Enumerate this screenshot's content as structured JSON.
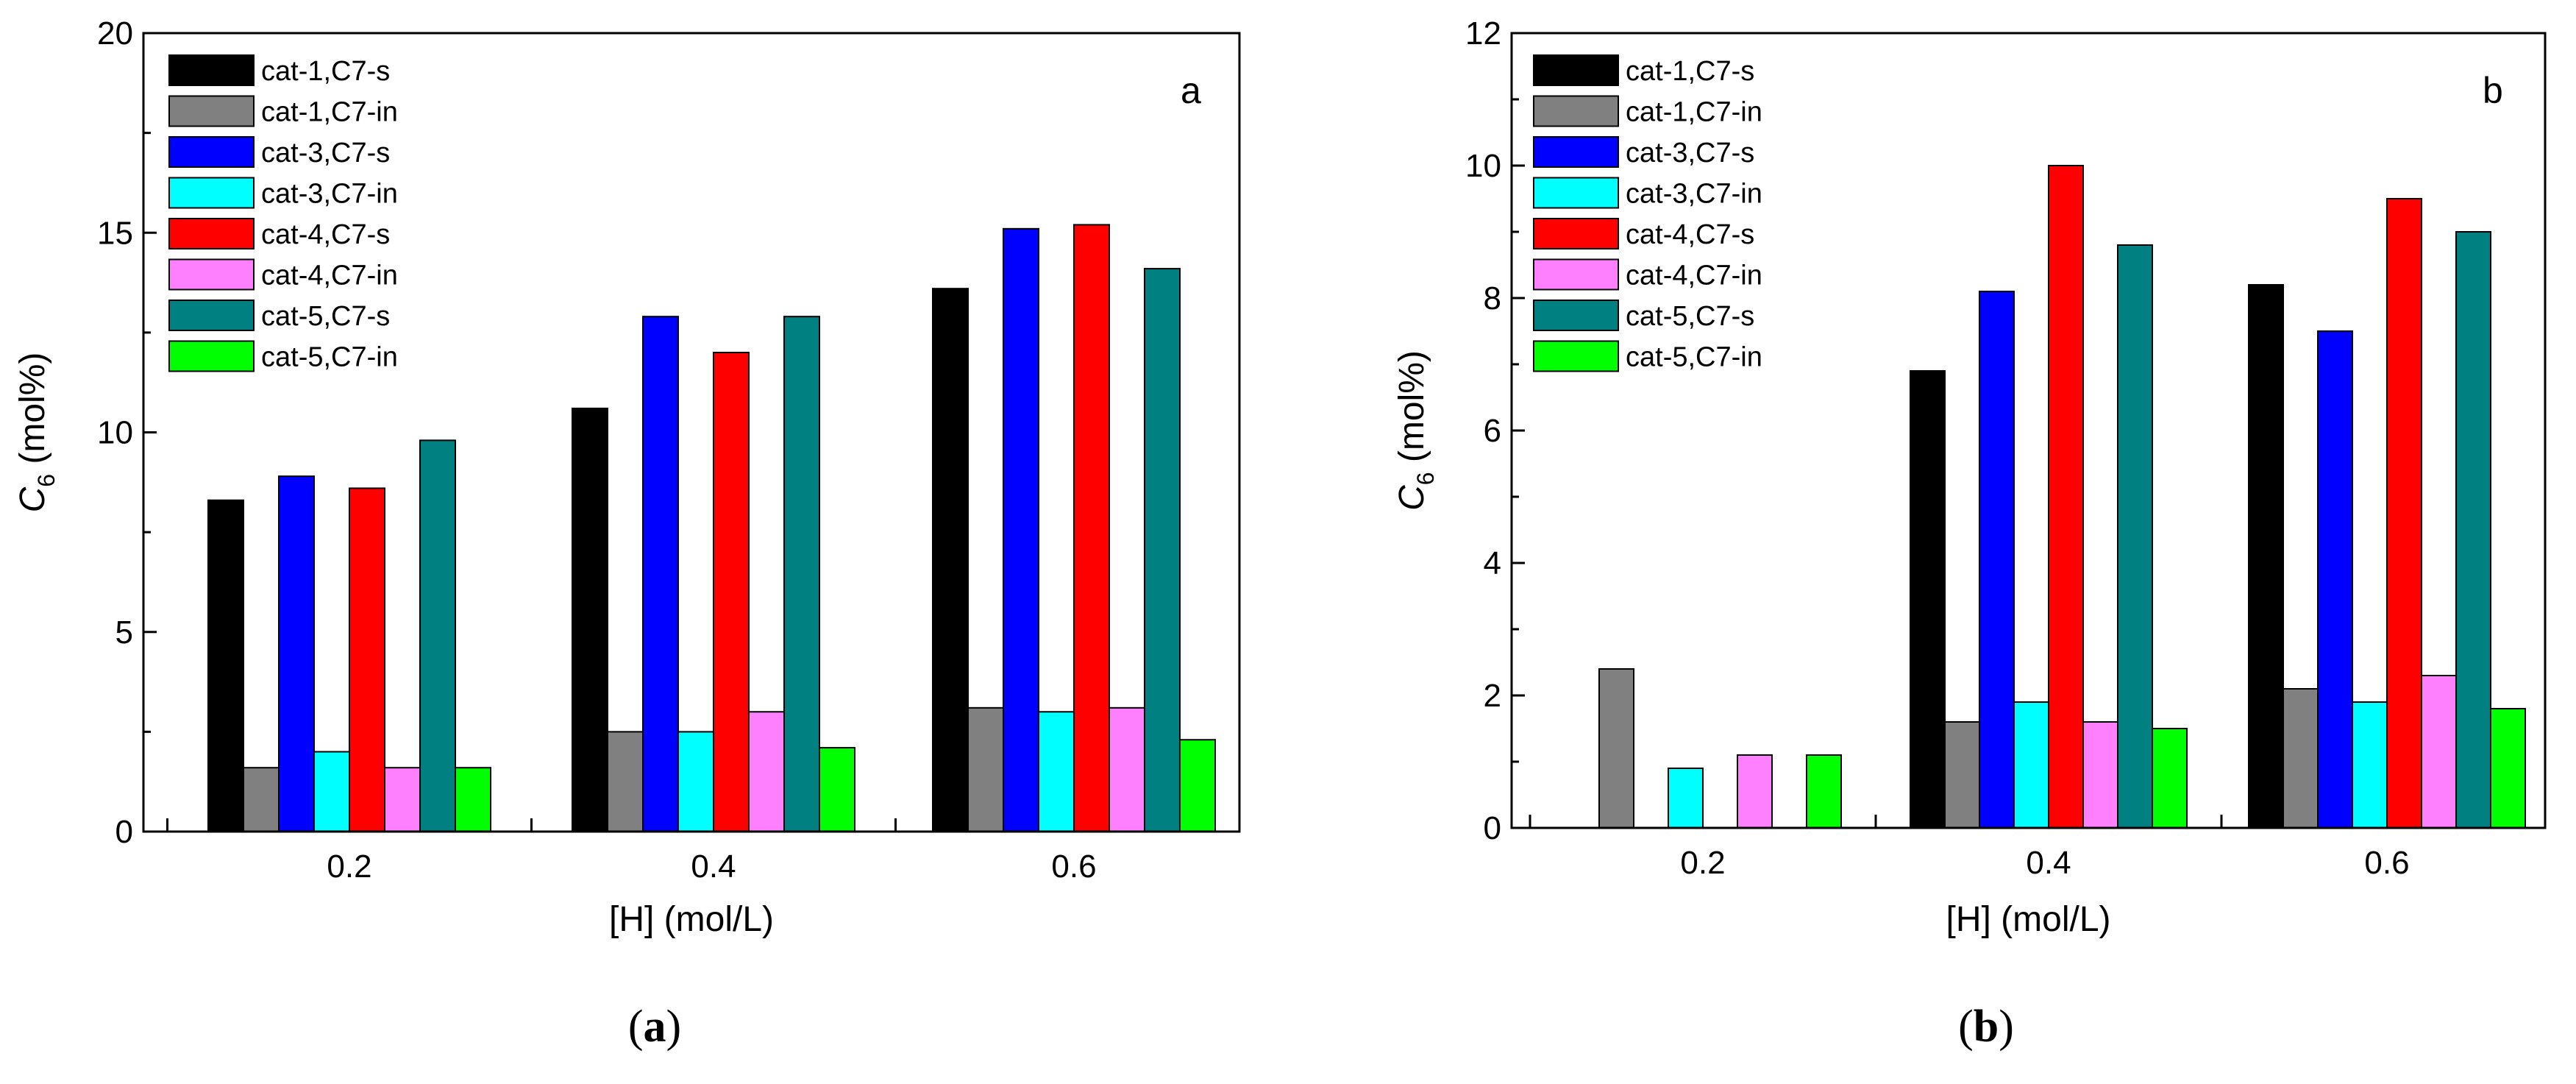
{
  "chart_data": [
    {
      "type": "bar",
      "panel_label": "a",
      "caption_letter": "a",
      "xlabel": "[H] (mol/L)",
      "ylabel_main": "C",
      "ylabel_sub": "6",
      "ylabel_unit": " (mol%)",
      "ylim": [
        0,
        20
      ],
      "yticks": [
        0,
        5,
        10,
        15,
        20
      ],
      "categories": [
        "0.2",
        "0.4",
        "0.6"
      ],
      "legend_position": "top-left",
      "series": [
        {
          "name": "cat-1,C7-s",
          "color": "#000000",
          "values": [
            8.3,
            10.6,
            13.6
          ]
        },
        {
          "name": "cat-1,C7-in",
          "color": "#808080",
          "values": [
            1.6,
            2.5,
            3.1
          ]
        },
        {
          "name": "cat-3,C7-s",
          "color": "#0000ff",
          "values": [
            8.9,
            12.9,
            15.1
          ]
        },
        {
          "name": "cat-3,C7-in",
          "color": "#00ffff",
          "values": [
            2.0,
            2.5,
            3.0
          ]
        },
        {
          "name": "cat-4,C7-s",
          "color": "#ff0000",
          "values": [
            8.6,
            12.0,
            15.2
          ]
        },
        {
          "name": "cat-4,C7-in",
          "color": "#ff80ff",
          "values": [
            1.6,
            3.0,
            3.1
          ]
        },
        {
          "name": "cat-5,C7-s",
          "color": "#008080",
          "values": [
            9.8,
            12.9,
            14.1
          ]
        },
        {
          "name": "cat-5,C7-in",
          "color": "#00ff00",
          "values": [
            1.6,
            2.1,
            2.3
          ]
        }
      ]
    },
    {
      "type": "bar",
      "panel_label": "b",
      "caption_letter": "b",
      "xlabel": "[H] (mol/L)",
      "ylabel_main": "C",
      "ylabel_sub": "6",
      "ylabel_unit": " (mol%)",
      "ylim": [
        0,
        12
      ],
      "yticks": [
        0,
        2,
        4,
        6,
        8,
        10,
        12
      ],
      "categories": [
        "0.2",
        "0.4",
        "0.6"
      ],
      "legend_position": "top-left",
      "series": [
        {
          "name": "cat-1,C7-s",
          "color": "#000000",
          "values": [
            0,
            6.9,
            8.2
          ]
        },
        {
          "name": "cat-1,C7-in",
          "color": "#808080",
          "values": [
            2.4,
            1.6,
            2.1
          ]
        },
        {
          "name": "cat-3,C7-s",
          "color": "#0000ff",
          "values": [
            0,
            8.1,
            7.5
          ]
        },
        {
          "name": "cat-3,C7-in",
          "color": "#00ffff",
          "values": [
            0.9,
            1.9,
            1.9
          ]
        },
        {
          "name": "cat-4,C7-s",
          "color": "#ff0000",
          "values": [
            0,
            10.0,
            9.5
          ]
        },
        {
          "name": "cat-4,C7-in",
          "color": "#ff80ff",
          "values": [
            1.1,
            1.6,
            2.3
          ]
        },
        {
          "name": "cat-5,C7-s",
          "color": "#008080",
          "values": [
            0,
            8.8,
            9.0
          ]
        },
        {
          "name": "cat-5,C7-in",
          "color": "#00ff00",
          "values": [
            1.1,
            1.5,
            1.8
          ]
        }
      ]
    }
  ]
}
